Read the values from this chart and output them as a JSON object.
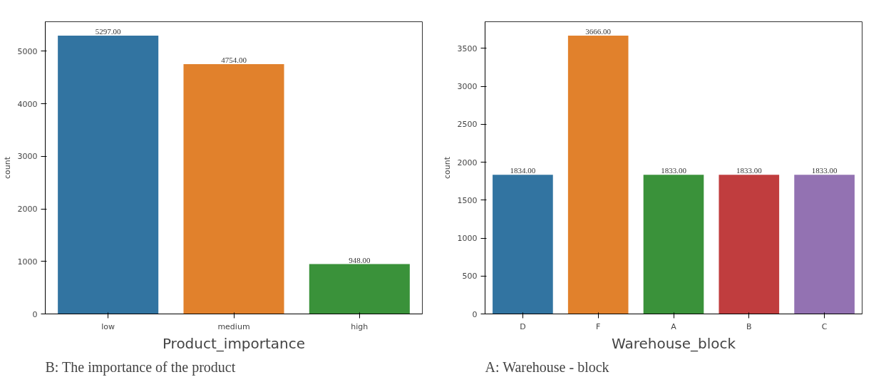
{
  "chart_data": [
    {
      "type": "bar",
      "categories": [
        "low",
        "medium",
        "high"
      ],
      "xlabel": "Product_importance",
      "ylabel": "count",
      "series": [
        {
          "color": null,
          "colors": [
            "#3274a1",
            "#e1812c",
            "#3a923a"
          ],
          "values": [
            5297,
            4754,
            948
          ],
          "value_labels": [
            "5297.00",
            "4754.00",
            "948.00"
          ]
        }
      ],
      "ylim": [
        0,
        5560
      ],
      "yticks": [
        0,
        1000,
        2000,
        3000,
        4000,
        5000
      ],
      "grid": false,
      "annotations": [
        "B: The importance of the product"
      ]
    },
    {
      "type": "bar",
      "categories": [
        "D",
        "F",
        "A",
        "B",
        "C"
      ],
      "xlabel": "Warehouse_block",
      "ylabel": "count",
      "series": [
        {
          "color": null,
          "colors": [
            "#3274a1",
            "#e1812c",
            "#3a923a",
            "#c03d3e",
            "#9372b2"
          ],
          "values": [
            1834,
            3666,
            1833,
            1833,
            1833
          ],
          "value_labels": [
            "1834.00",
            "3666.00",
            "1833.00",
            "1833.00",
            "1833.00"
          ]
        }
      ],
      "ylim": [
        0,
        3850
      ],
      "yticks": [
        0,
        500,
        1000,
        1500,
        2000,
        2500,
        3000,
        3500
      ],
      "grid": false,
      "annotations": [
        "A: Warehouse - block"
      ]
    }
  ]
}
